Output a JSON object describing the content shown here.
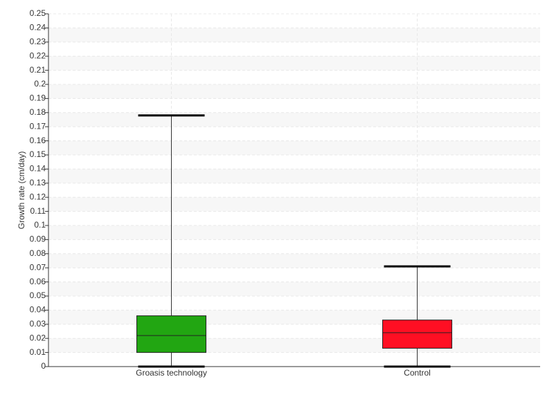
{
  "chart_data": {
    "type": "box",
    "y_label": "Growth rate (cm/day)",
    "boxes": [
      {
        "name": "Groasis technology",
        "color": "#22a612",
        "min": 0,
        "q1": 0.01,
        "median": 0.022,
        "q3": 0.036,
        "max": 0.178
      },
      {
        "name": "Control",
        "color": "#ff0f23",
        "min": 0,
        "q1": 0.013,
        "median": 0.024,
        "q3": 0.033,
        "max": 0.071
      }
    ],
    "ylim": [
      0,
      0.25
    ],
    "yticks": [
      0,
      0.01,
      0.02,
      0.03,
      0.04,
      0.05,
      0.06,
      0.07,
      0.08,
      0.09,
      0.1,
      0.11,
      0.12,
      0.13,
      0.14,
      0.15,
      0.16,
      0.17,
      0.18,
      0.19,
      0.2,
      0.21,
      0.22,
      0.23,
      0.24,
      0.25
    ],
    "grid": true
  }
}
